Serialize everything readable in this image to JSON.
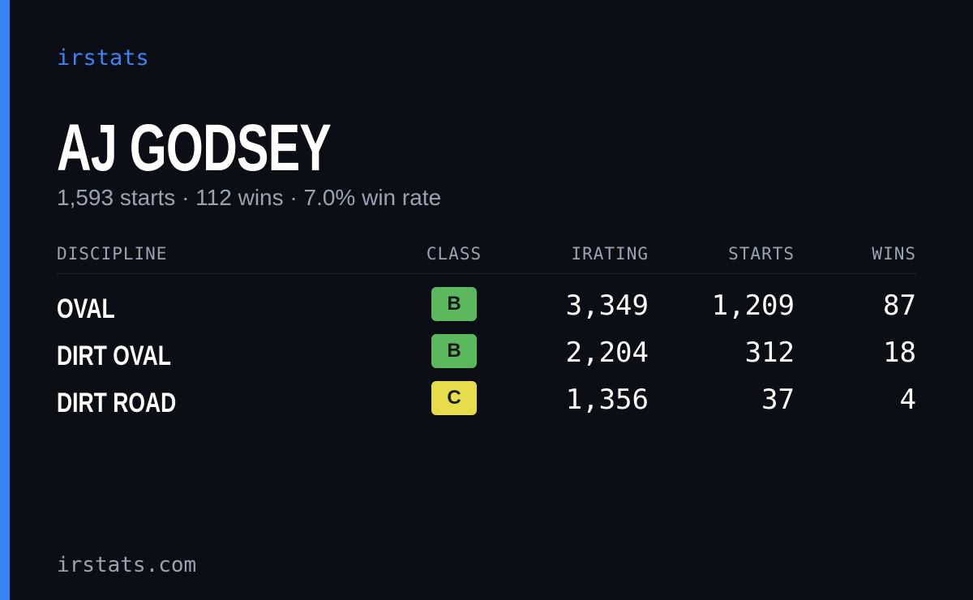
{
  "brand": "irstats",
  "driver": {
    "name": "AJ GODSEY",
    "summary": "1,593 starts · 112 wins · 7.0% win rate"
  },
  "table": {
    "columns": [
      "DISCIPLINE",
      "CLASS",
      "IRATING",
      "STARTS",
      "WINS"
    ],
    "rows": [
      {
        "discipline": "OVAL",
        "class": "B",
        "class_color": "#5cb85c",
        "irating": "3,349",
        "starts": "1,209",
        "wins": "87"
      },
      {
        "discipline": "DIRT OVAL",
        "class": "B",
        "class_color": "#5cb85c",
        "irating": "2,204",
        "starts": "312",
        "wins": "18"
      },
      {
        "discipline": "DIRT ROAD",
        "class": "C",
        "class_color": "#e6dc4c",
        "irating": "1,356",
        "starts": "37",
        "wins": "4"
      }
    ]
  },
  "footer": "irstats.com"
}
